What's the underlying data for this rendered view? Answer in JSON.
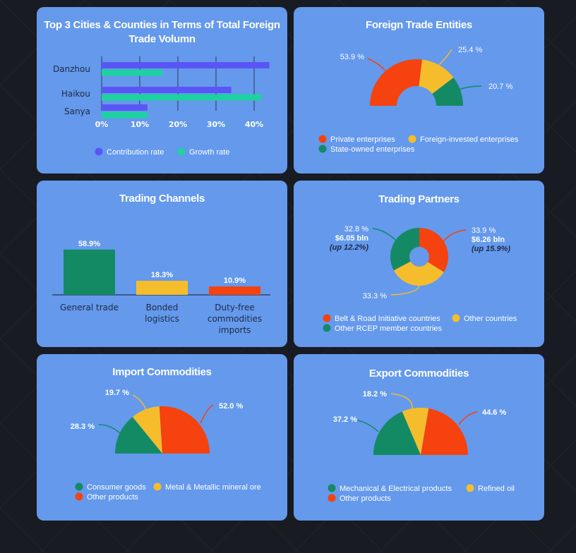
{
  "colors": {
    "background": "#181b22",
    "card": "#6499ec",
    "blue": "#5a55f5",
    "teal": "#1ed1a0",
    "red": "#f5420e",
    "yellow": "#f5bd2c",
    "green": "#138a64"
  },
  "chart_data": [
    {
      "type": "bar",
      "orientation": "horizontal",
      "title": "Top 3 Cities & Counties in Terms of Total Foreign Trade Volumn",
      "categories": [
        "Danzhou",
        "Haikou",
        "Sanya"
      ],
      "series": [
        {
          "name": "Contribution rate",
          "values": [
            44,
            34,
            12
          ]
        },
        {
          "name": "Growth rate",
          "values": [
            16,
            42,
            12
          ]
        }
      ],
      "xticks": [
        "0%",
        "10%",
        "20%",
        "30%",
        "40%"
      ],
      "xlim": [
        0,
        44
      ],
      "legend": "bottom"
    },
    {
      "type": "pie",
      "variant": "semicircle-donut",
      "title": "Foreign Trade Entities",
      "slices": [
        {
          "label": "Private enterprises",
          "value": 53.9,
          "text": "53.9 %"
        },
        {
          "label": "Foreign-invested enterprises",
          "value": 25.4,
          "text": "25.4 %"
        },
        {
          "label": "State-owned enterprises",
          "value": 20.7,
          "text": "20.7 %"
        }
      ],
      "legend": "bottom"
    },
    {
      "type": "bar",
      "title": "Trading Channels",
      "categories": [
        "General trade",
        "Bonded logistics",
        "Duty-free commodities imports"
      ],
      "category_lines": [
        [
          "General trade"
        ],
        [
          "Bonded",
          "logistics"
        ],
        [
          "Duty-free",
          "commodities",
          "imports"
        ]
      ],
      "values": [
        58.9,
        18.3,
        10.9
      ],
      "labels": [
        "58.9%",
        "18.3%",
        "10.9%"
      ],
      "ylim": [
        0,
        65
      ]
    },
    {
      "type": "pie",
      "variant": "donut",
      "title": "Trading Partners",
      "slices": [
        {
          "label": "Belt & Road Initiative countries",
          "value": 33.9,
          "text": "33.9 %",
          "amount": "$6.26 bln",
          "change": "(up 15.9%)"
        },
        {
          "label": "Other countries",
          "value": 33.3,
          "text": "33.3 %"
        },
        {
          "label": "Other RCEP member countries",
          "value": 32.8,
          "text": "32.8 %",
          "amount": "$6.05 bln",
          "change": "(up 12.2%)"
        }
      ],
      "legend": "bottom"
    },
    {
      "type": "pie",
      "variant": "semicircle",
      "title": "Import Commodities",
      "slices": [
        {
          "label": "Consumer goods",
          "value": 28.3,
          "text": "28.3 %"
        },
        {
          "label": "Metal & Metallic mineral ore",
          "value": 19.7,
          "text": "19.7 %"
        },
        {
          "label": "Other products",
          "value": 52.0,
          "text": "52.0 %"
        }
      ],
      "legend": "bottom"
    },
    {
      "type": "pie",
      "variant": "semicircle",
      "title": "Export Commodities",
      "slices": [
        {
          "label": "Mechanical & Electrical products",
          "value": 37.2,
          "text": "37.2 %"
        },
        {
          "label": "Refined oil",
          "value": 18.2,
          "text": "18.2 %"
        },
        {
          "label": "Other products",
          "value": 44.6,
          "text": "44.6 %"
        }
      ],
      "legend": "bottom"
    }
  ]
}
